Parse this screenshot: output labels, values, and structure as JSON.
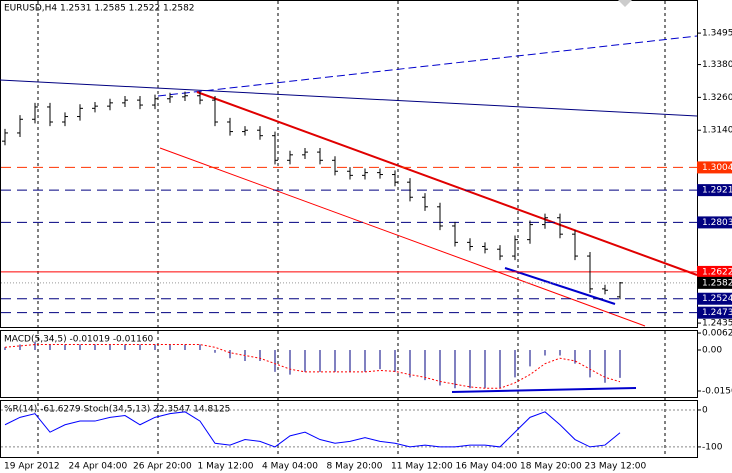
{
  "chart_data": {
    "type": "ohlc",
    "title": "EURUSD,H4 1.2531 1.2585 1.2522 1.2582",
    "color": "#000000",
    "ylim": [
      1.2417,
      1.3616
    ],
    "yticks": [
      1.3495,
      {
        "value": 1.338,
        "label": "1.3380"
      },
      {
        "value": 1.326,
        "label": "1.3260"
      },
      {
        "value": 1.314,
        "label": "1.3140"
      },
      1.2435
    ],
    "levels": [
      {
        "value": 1.3004,
        "label": "1.3004",
        "color": "#ff3300",
        "style": "dash"
      },
      {
        "value": 1.2921,
        "label": "1.2921",
        "color": "#000080",
        "style": "dash"
      },
      {
        "value": 1.2803,
        "label": "1.2803",
        "color": "#000080",
        "style": "dash"
      },
      {
        "value": 1.2622,
        "label": "1.2622",
        "color": "#ff0000",
        "style": "solid"
      },
      {
        "value": 1.2582,
        "label": "1.2582",
        "color": "#000000",
        "style": "dot"
      },
      {
        "value": 1.2524,
        "label": "1.2524",
        "color": "#000080",
        "style": "dash"
      },
      {
        "value": 1.2473,
        "label": "1.2473",
        "color": "#000080",
        "style": "dash"
      }
    ],
    "x_labels": [
      "19 Apr 2012",
      "24 Apr 04:00",
      "26 Apr 20:00",
      "1 May 12:00",
      "4 May 04:00",
      "8 May 20:00",
      "11 May 12:00",
      "16 May 04:00",
      "18 May 20:00",
      "23 May 12:00"
    ],
    "open": [
      1.31,
      1.313,
      1.318,
      1.3225,
      1.317,
      1.319,
      1.322,
      1.3228,
      1.324,
      1.325,
      1.3232,
      1.3255,
      1.3262,
      1.3266,
      1.325,
      1.317,
      1.3135,
      1.314,
      1.312,
      1.303,
      1.305,
      1.306,
      1.303,
      1.299,
      1.2975,
      1.2985,
      1.2978,
      1.295,
      1.2895,
      1.286,
      1.279,
      1.273,
      1.2715,
      1.2705,
      1.268,
      1.274,
      1.2795,
      1.282,
      1.276,
      1.268,
      1.256,
      1.2531
    ],
    "high": [
      1.3145,
      1.3195,
      1.324,
      1.324,
      1.3205,
      1.3235,
      1.3243,
      1.3255,
      1.3265,
      1.3265,
      1.327,
      1.3277,
      1.3281,
      1.3281,
      1.3265,
      1.3185,
      1.3155,
      1.3155,
      1.3135,
      1.3065,
      1.3075,
      1.3075,
      1.3045,
      1.3005,
      1.3,
      1.3,
      1.2993,
      1.2965,
      1.291,
      1.2875,
      1.2805,
      1.2745,
      1.273,
      1.272,
      1.2755,
      1.281,
      1.2835,
      1.2835,
      1.2775,
      1.2695,
      1.2575,
      1.2585
    ],
    "low": [
      1.3085,
      1.3115,
      1.3165,
      1.3155,
      1.3155,
      1.3175,
      1.3205,
      1.3213,
      1.3225,
      1.3217,
      1.3217,
      1.324,
      1.3247,
      1.3235,
      1.3155,
      1.312,
      1.312,
      1.3105,
      1.3015,
      1.3015,
      1.3035,
      1.3015,
      1.2975,
      1.296,
      1.296,
      1.2963,
      1.2935,
      1.288,
      1.2845,
      1.2775,
      1.2715,
      1.27,
      1.269,
      1.2665,
      1.2665,
      1.2725,
      1.278,
      1.2745,
      1.2665,
      1.2545,
      1.254,
      1.2522
    ],
    "close": [
      1.313,
      1.318,
      1.3225,
      1.317,
      1.319,
      1.322,
      1.3228,
      1.324,
      1.325,
      1.3232,
      1.3255,
      1.3262,
      1.3266,
      1.325,
      1.317,
      1.3135,
      1.314,
      1.312,
      1.303,
      1.305,
      1.306,
      1.303,
      1.299,
      1.2975,
      1.2985,
      1.2978,
      1.295,
      1.2895,
      1.286,
      1.279,
      1.273,
      1.2715,
      1.2705,
      1.268,
      1.274,
      1.2795,
      1.282,
      1.276,
      1.268,
      1.256,
      1.2555,
      1.2582
    ],
    "macd": {
      "title": "MACD(5,34,5) -0.01019 -0.01160",
      "ylim": [
        0.00732,
        -0.01756
      ],
      "yticks": [
        0.00621,
        {
          "value": 0,
          "label": "0.00"
        },
        {
          "value": -0.015,
          "label": "-0.0150"
        }
      ],
      "color": "#000080",
      "signal_color": "#ff0000",
      "values": [
        0.001,
        0.002,
        0.003,
        0.002,
        0.002,
        0.002,
        0.002,
        0.002,
        0.002,
        0.002,
        0.002,
        0.002,
        0.002,
        0.002,
        -0.001,
        -0.003,
        -0.004,
        -0.004,
        -0.008,
        -0.009,
        -0.008,
        -0.008,
        -0.008,
        -0.008,
        -0.008,
        -0.007,
        -0.008,
        -0.01,
        -0.011,
        -0.013,
        -0.014,
        -0.014,
        -0.014,
        -0.014,
        -0.01,
        -0.006,
        -0.002,
        -0.002,
        -0.005,
        -0.01,
        -0.012,
        -0.01019
      ],
      "signal": [
        0.001,
        0.0015,
        0.002,
        0.002,
        0.002,
        0.002,
        0.002,
        0.002,
        0.002,
        0.002,
        0.002,
        0.002,
        0.002,
        0.002,
        0.001,
        -0.001,
        -0.002,
        -0.003,
        -0.005,
        -0.007,
        -0.008,
        -0.008,
        -0.008,
        -0.008,
        -0.008,
        -0.0075,
        -0.0078,
        -0.009,
        -0.01,
        -0.0115,
        -0.0125,
        -0.0135,
        -0.014,
        -0.014,
        -0.012,
        -0.009,
        -0.005,
        -0.003,
        -0.004,
        -0.007,
        -0.01,
        -0.0116
      ]
    },
    "oscillator": {
      "title": "%R(14) -61.6279 Stoch(34,5,13) 22.3547 14.8125",
      "ylim": [
        27,
        -130
      ],
      "yticks": [
        0,
        -100
      ],
      "color": "#0000ff",
      "values": [
        -40,
        -20,
        -10,
        -60,
        -40,
        -30,
        -30,
        -20,
        -15,
        -40,
        -20,
        -10,
        -5,
        -30,
        -90,
        -95,
        -80,
        -85,
        -100,
        -70,
        -60,
        -80,
        -90,
        -85,
        -75,
        -85,
        -90,
        -100,
        -95,
        -100,
        -100,
        -95,
        -95,
        -100,
        -60,
        -20,
        -5,
        -40,
        -80,
        -100,
        -95,
        -61.6279
      ]
    }
  }
}
